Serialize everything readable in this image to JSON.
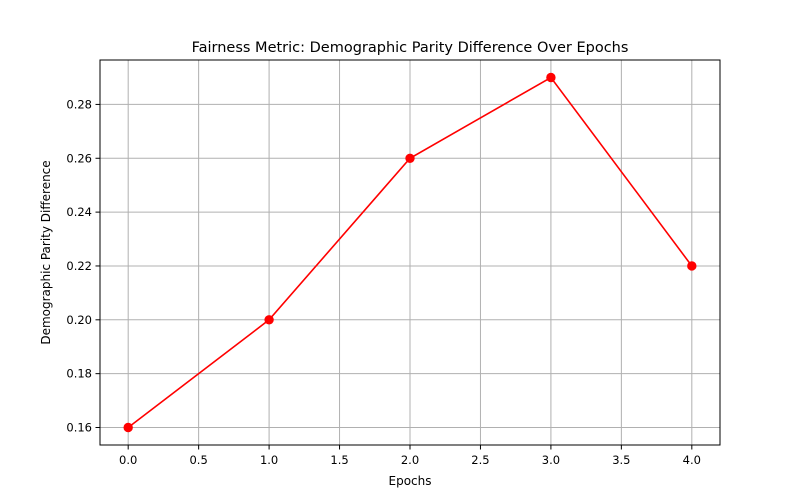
{
  "chart_data": {
    "type": "line",
    "title": "Fairness Metric: Demographic Parity Difference Over Epochs",
    "xlabel": "Epochs",
    "ylabel": "Demographic Parity Difference",
    "x": [
      0,
      1,
      2,
      3,
      4
    ],
    "series": [
      {
        "values": [
          0.16,
          0.2,
          0.26,
          0.29,
          0.22
        ]
      }
    ],
    "xlim": [
      -0.2,
      4.2
    ],
    "ylim": [
      0.1535,
      0.2965
    ],
    "xticks": [
      0.0,
      0.5,
      1.0,
      1.5,
      2.0,
      2.5,
      3.0,
      3.5,
      4.0
    ],
    "xtick_labels": [
      "0.0",
      "0.5",
      "1.0",
      "1.5",
      "2.0",
      "2.5",
      "3.0",
      "3.5",
      "4.0"
    ],
    "yticks": [
      0.16,
      0.18,
      0.2,
      0.22,
      0.24,
      0.26,
      0.28
    ],
    "ytick_labels": [
      "0.16",
      "0.18",
      "0.20",
      "0.22",
      "0.24",
      "0.26",
      "0.28"
    ],
    "grid": true,
    "marker": "circle",
    "color": "#ff0000",
    "legend": "none"
  }
}
